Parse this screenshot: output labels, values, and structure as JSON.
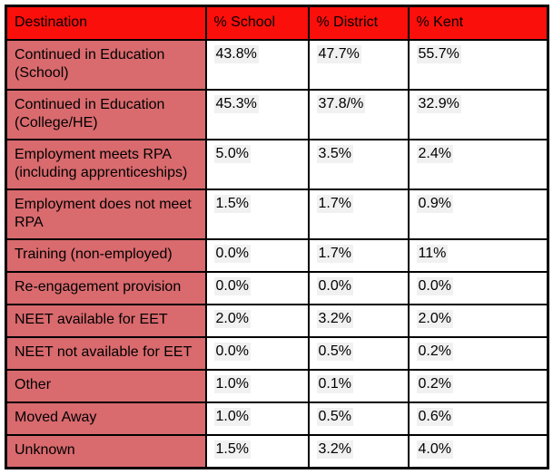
{
  "colors": {
    "header_bg": "#fb0f0b",
    "row_label_bg": "#d96a6e",
    "value_highlight_bg": "#f1f1f1",
    "border": "#000000",
    "text": "#000000"
  },
  "header": [
    "Destination",
    "% School",
    "% District",
    "% Kent"
  ],
  "rows": [
    [
      "Continued in Education (School)",
      "43.8%",
      "47.7%",
      "55.7%"
    ],
    [
      "Continued in Education (College/HE)",
      "45.3%",
      "37.8/%",
      "32.9%"
    ],
    [
      "Employment meets RPA (including apprenticeships)",
      "5.0%",
      "3.5%",
      "2.4%"
    ],
    [
      "Employment does not meet RPA",
      "1.5%",
      "1.7%",
      "0.9%"
    ],
    [
      "Training (non-employed)",
      "0.0%",
      "1.7%",
      "11%"
    ],
    [
      "Re-engagement provision",
      "0.0%",
      "0.0%",
      "0.0%"
    ],
    [
      "NEET available for EET",
      "2.0%",
      "3.2%",
      "2.0%"
    ],
    [
      "NEET not available for EET",
      "0.0%",
      "0.5%",
      "0.2%"
    ],
    [
      "Other",
      "1.0%",
      "0.1%",
      "0.2%"
    ],
    [
      "Moved Away",
      "1.0%",
      "0.5%",
      "0.6%"
    ],
    [
      "Unknown",
      "1.5%",
      "3.2%",
      "4.0%"
    ]
  ]
}
